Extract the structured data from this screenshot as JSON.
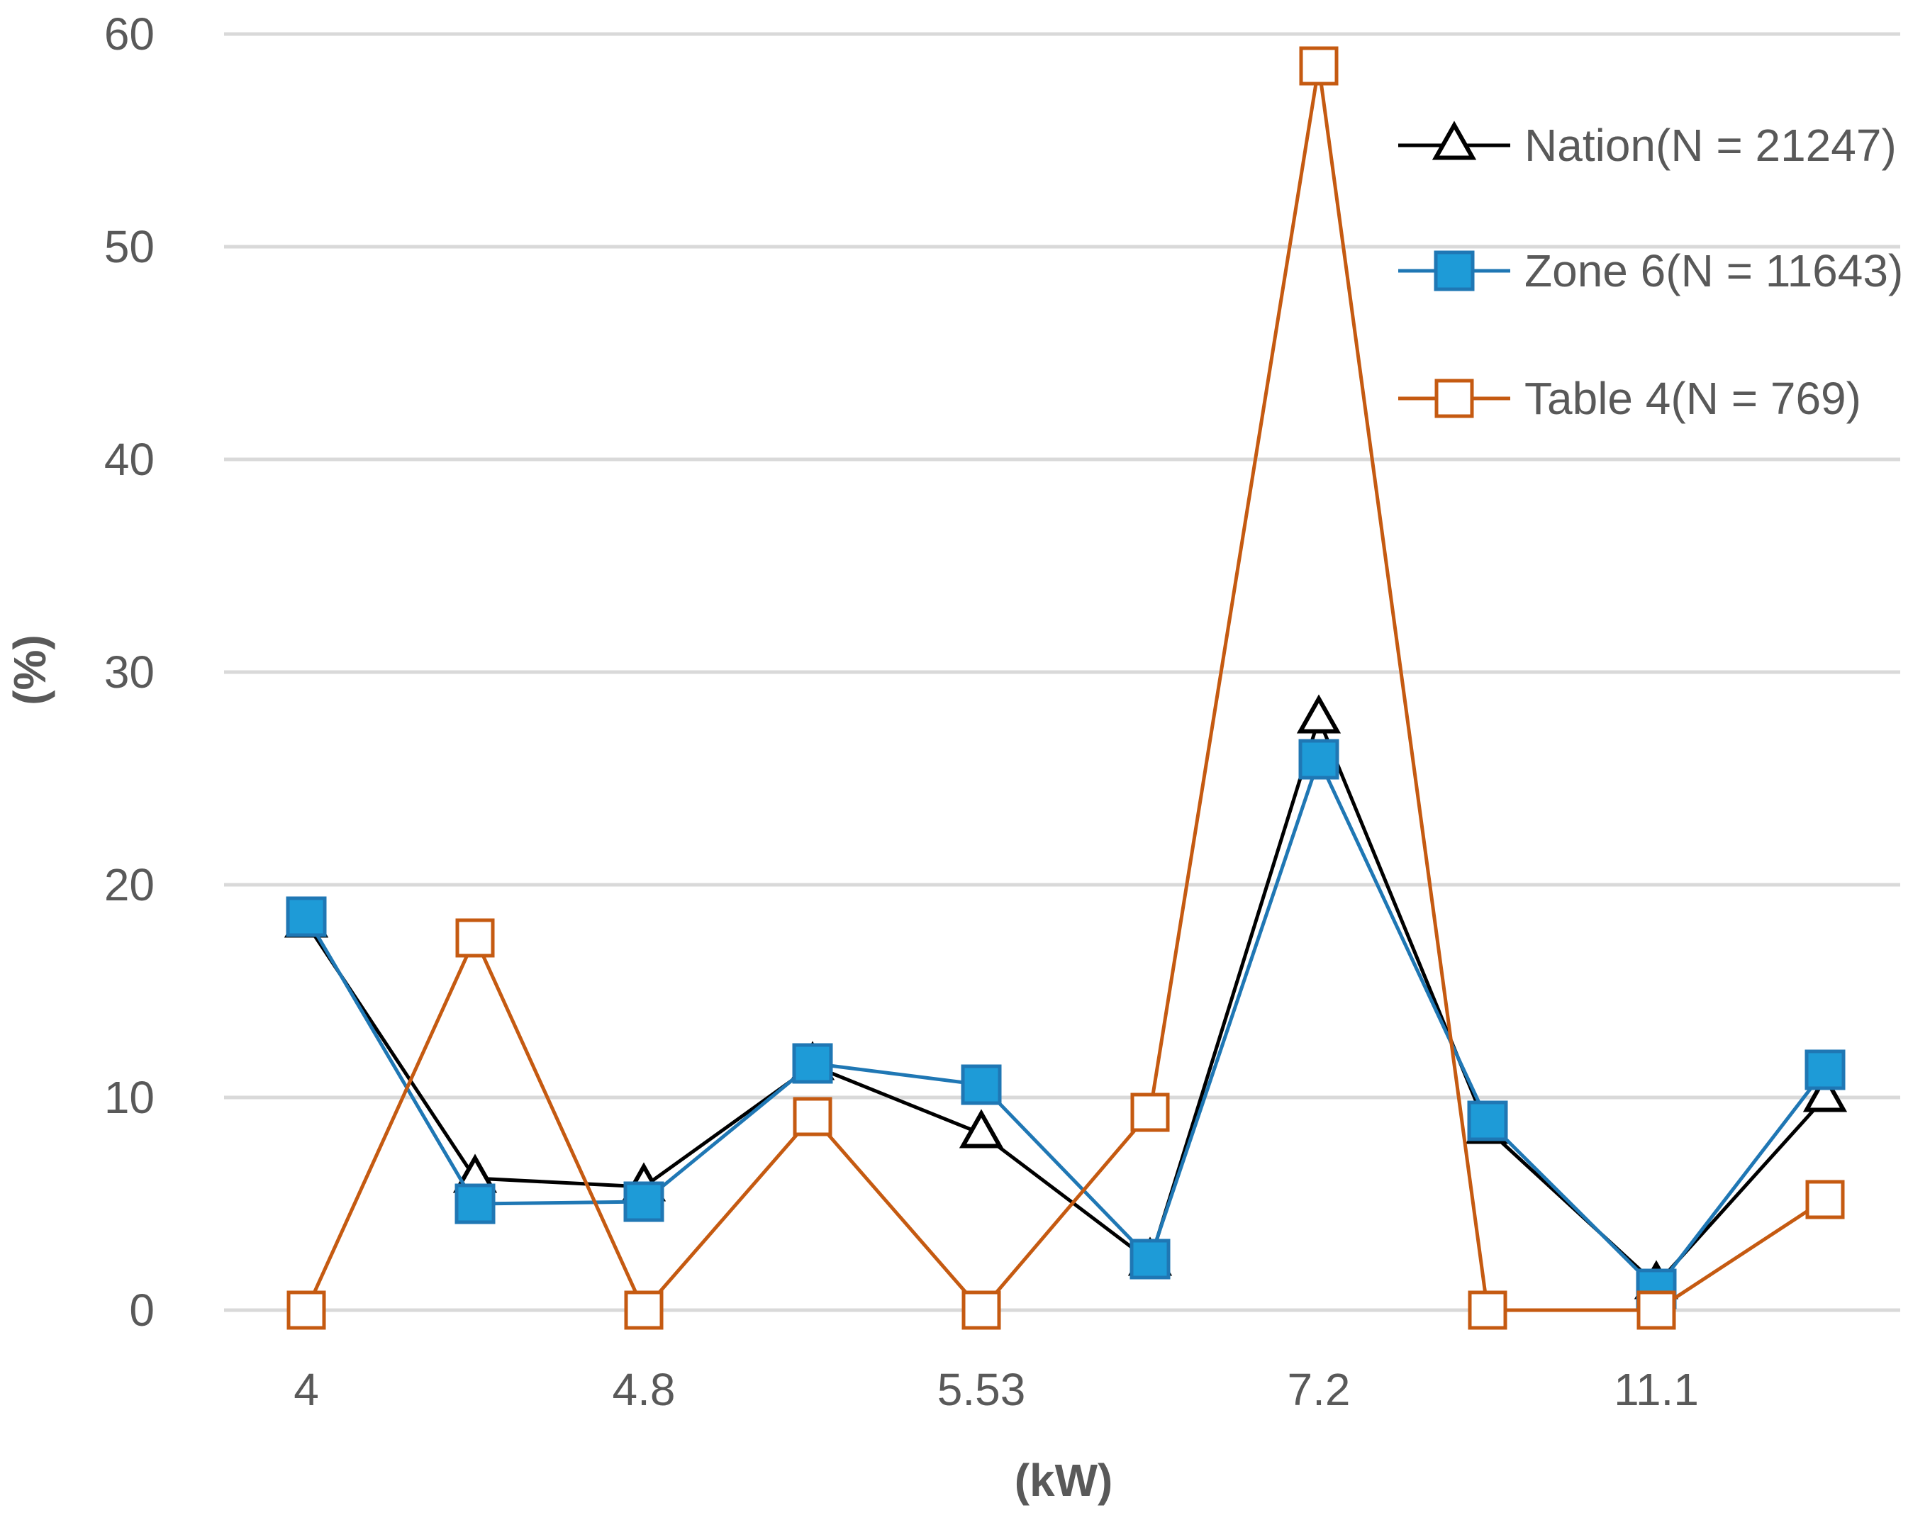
{
  "chart_data": {
    "type": "line",
    "title": "",
    "xlabel": "(kW)",
    "ylabel": "(%)",
    "ylim": [
      0,
      60
    ],
    "yticks": [
      0,
      10,
      20,
      30,
      40,
      50,
      60
    ],
    "grid": true,
    "legend_position": "top-right",
    "x_tick_labels": [
      {
        "index": 0,
        "label": "4"
      },
      {
        "index": 2,
        "label": "4.8"
      },
      {
        "index": 4,
        "label": "5.53"
      },
      {
        "index": 6,
        "label": "7.2"
      },
      {
        "index": 8,
        "label": "11.1"
      }
    ],
    "point_count": 10,
    "series": [
      {
        "name": "Nation(N = 21247)",
        "color": "#000000",
        "marker": "triangle-open",
        "values": [
          18.2,
          6.2,
          5.8,
          11.5,
          8.3,
          2.3,
          27.8,
          8.5,
          1.2,
          10.0
        ]
      },
      {
        "name": "Zone 6(N = 11643)",
        "color": "#1f77b4",
        "marker_fill": "#1e9bd7",
        "marker": "square-filled",
        "values": [
          18.5,
          5.0,
          5.1,
          11.6,
          10.6,
          2.4,
          25.9,
          8.9,
          1.0,
          11.3
        ]
      },
      {
        "name": "Table 4(N = 769)",
        "color": "#c55a11",
        "marker": "square-open",
        "values": [
          0,
          17.5,
          0,
          9.1,
          0,
          9.3,
          58.5,
          0,
          0,
          5.2
        ]
      }
    ]
  }
}
